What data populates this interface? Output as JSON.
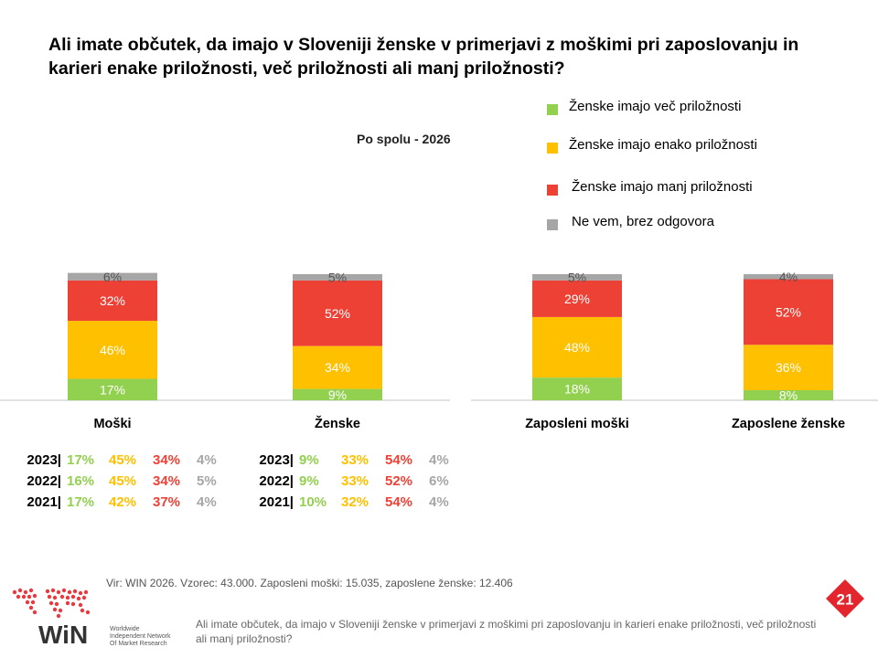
{
  "title": "Ali imate občutek, da imajo v Sloveniji ženske v primerjavi z moškimi pri zaposlovanju in karieri enake priložnosti, več priložnosti ali manj priložnosti?",
  "subtitle": "Po spolu - 2026",
  "colors": {
    "green": "#92D050",
    "yellow": "#FFC000",
    "red": "#EE4136",
    "gray": "#A6A6A6",
    "axis": "#D9D9D9",
    "pagenum": "#E3262D"
  },
  "chart_data": {
    "type": "bar",
    "stacked": true,
    "categories": [
      "Moški",
      "Ženske",
      "Zaposleni moški",
      "Zaposlene ženske"
    ],
    "series": [
      {
        "name": "Ženske imajo več priložnosti",
        "values": [
          17,
          9,
          18,
          8
        ],
        "labels": [
          "17%",
          "9%",
          "18%",
          "8%"
        ],
        "color": "#92D050"
      },
      {
        "name": "Ženske imajo enako priložnosti",
        "values": [
          46,
          34,
          48,
          36
        ],
        "labels": [
          "46%",
          "34%",
          "48%",
          "36%"
        ],
        "color": "#FFC000"
      },
      {
        "name": "Ženske imajo manj priložnosti",
        "values": [
          32,
          52,
          29,
          52
        ],
        "labels": [
          "32%",
          "52%",
          "29%",
          "52%"
        ],
        "color": "#EE4136"
      },
      {
        "name": "Ne vem, brez odgovora",
        "values": [
          6,
          5,
          5,
          4
        ],
        "labels": [
          "6%",
          "5%",
          "5%",
          "4%"
        ],
        "color": "#A6A6A6"
      }
    ],
    "ylim": [
      0,
      100
    ],
    "legend_position": "top-right",
    "grid": false
  },
  "history": [
    {
      "group": "Moški",
      "rows": [
        {
          "year": "2023|",
          "values": [
            "17%",
            "45%",
            "34%",
            "4%"
          ]
        },
        {
          "year": "2022|",
          "values": [
            "16%",
            "45%",
            "34%",
            "5%"
          ]
        },
        {
          "year": "2021|",
          "values": [
            "17%",
            "42%",
            "37%",
            "4%"
          ]
        }
      ]
    },
    {
      "group": "Ženske",
      "rows": [
        {
          "year": "2023|",
          "values": [
            "9%",
            "33%",
            "54%",
            "4%"
          ]
        },
        {
          "year": "2022|",
          "values": [
            "9%",
            "33%",
            "52%",
            "6%"
          ]
        },
        {
          "year": "2021|",
          "values": [
            "10%",
            "32%",
            "54%",
            "4%"
          ]
        }
      ]
    }
  ],
  "source": "Vir: WIN 2026.  Vzorec: 43.000.  Zaposleni moški: 15.035,  zaposlene ženske: 12.406",
  "logo": {
    "mark": "WiN",
    "line1": "Worldwide",
    "line2": "Independent Network",
    "line3": "Of Market Research"
  },
  "footer_question": "Ali imate občutek, da imajo v Sloveniji ženske v primerjavi z moškimi pri zaposlovanju in karieri enake priložnosti, več priložnosti ali manj priložnosti?",
  "page_number": "21"
}
